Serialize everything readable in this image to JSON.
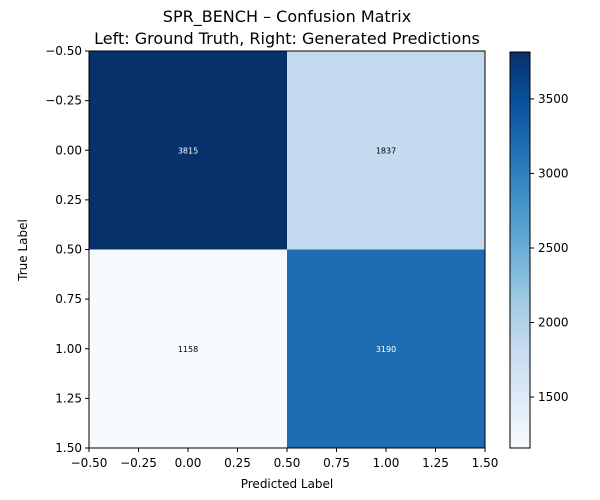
{
  "chart_data": {
    "type": "heatmap",
    "title_lines": [
      "SPR_BENCH – Confusion Matrix",
      "Left: Ground Truth, Right: Generated Predictions"
    ],
    "xlabel": "Predicted Label",
    "ylabel": "True Label",
    "x_ticks": [
      "-0.50",
      "-0.25",
      "0.00",
      "0.25",
      "0.50",
      "0.75",
      "1.00",
      "1.25",
      "1.50"
    ],
    "x_tick_values": [
      -0.5,
      -0.25,
      0,
      0.25,
      0.5,
      0.75,
      1.0,
      1.25,
      1.5
    ],
    "y_ticks": [
      "-0.50",
      "-0.25",
      "0.00",
      "0.25",
      "0.50",
      "0.75",
      "1.00",
      "1.25",
      "1.50"
    ],
    "y_tick_values": [
      -0.5,
      -0.25,
      0,
      0.25,
      0.5,
      0.75,
      1.0,
      1.25,
      1.5
    ],
    "xlim": [
      -0.5,
      1.5
    ],
    "ylim": [
      -0.5,
      1.5
    ],
    "y_inverted": true,
    "matrix": [
      [
        3815,
        1837
      ],
      [
        1158,
        3190
      ]
    ],
    "cell_labels": [
      [
        "3815",
        "1837"
      ],
      [
        "1158",
        "3190"
      ]
    ],
    "colormap": "Blues",
    "colorbar": {
      "vmin": 1158,
      "vmax": 3815,
      "ticks": [
        "1500",
        "2000",
        "2500",
        "3000",
        "3500"
      ],
      "tick_values": [
        1500,
        2000,
        2500,
        3000,
        3500
      ]
    },
    "grid": false
  }
}
